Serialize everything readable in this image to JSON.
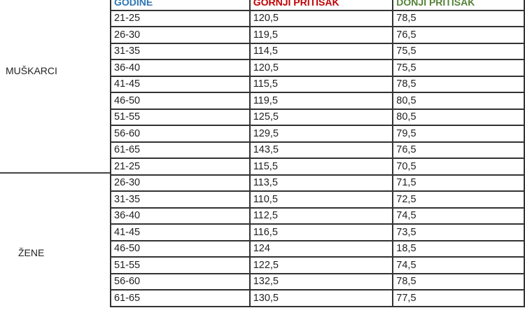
{
  "header": {
    "age": "GODINE",
    "systolic": "GORNJI PRITISAK",
    "diastolic": "DONJI PRITISAK",
    "colors": {
      "age": "#2e75b6",
      "systolic": "#c00000",
      "diastolic": "#548235"
    }
  },
  "groups": [
    {
      "label": "MUŠKARCI",
      "rows": [
        [
          "21-25",
          "120,5",
          "78,5"
        ],
        [
          "26-30",
          "119,5",
          "76,5"
        ],
        [
          "31-35",
          "114,5",
          "75,5"
        ],
        [
          "36-40",
          "120,5",
          "75,5"
        ],
        [
          "41-45",
          "115,5",
          "78,5"
        ],
        [
          "46-50",
          "119,5",
          "80,5"
        ],
        [
          "51-55",
          "125,5",
          "80,5"
        ],
        [
          "56-60",
          "129,5",
          "79,5"
        ],
        [
          "61-65",
          "143,5",
          "76,5"
        ]
      ]
    },
    {
      "label": "ŽENE",
      "rows": [
        [
          "21-25",
          "115,5",
          "70,5"
        ],
        [
          "26-30",
          "113,5",
          "71,5"
        ],
        [
          "31-35",
          "110,5",
          "72,5"
        ],
        [
          "36-40",
          "112,5",
          "74,5"
        ],
        [
          "41-45",
          "116,5",
          "73,5"
        ],
        [
          "46-50",
          "124",
          "18,5"
        ],
        [
          "51-55",
          "122,5",
          "74,5"
        ],
        [
          "56-60",
          "132,5",
          "78,5"
        ],
        [
          "61-65",
          "130,5",
          "77,5"
        ]
      ]
    }
  ]
}
